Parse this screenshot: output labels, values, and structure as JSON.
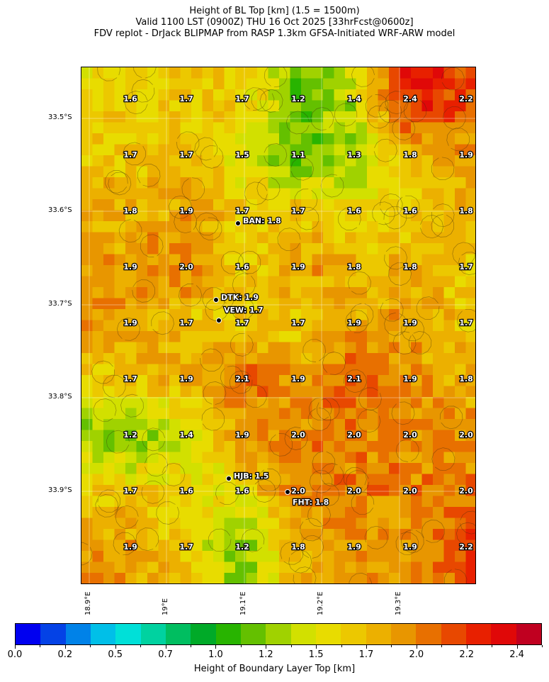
{
  "title": {
    "line1": "Height of BL Top [km] (1.5 = 1500m)",
    "line2": "Valid 1100 LST (0900Z) THU 16 Oct 2025 [33hrFcst@0600z]",
    "line3": "FDV replot - DrJack BLIPMAP from RASP 1.3km GFSA-Initiated WRF-ARW model"
  },
  "map": {
    "lat_ticks": [
      "33.5°S",
      "33.6°S",
      "33.7°S",
      "33.8°S",
      "33.9°S"
    ],
    "lon_ticks": [
      "18.9°E",
      "19°E",
      "19.1°E",
      "19.2°E",
      "19.3°E"
    ],
    "grid_labels": [
      [
        "1.6",
        "1.7",
        "1.7",
        "1.2",
        "1.4",
        "2.4",
        "2.2"
      ],
      [
        "1.7",
        "1.7",
        "1.5",
        "1.1",
        "1.3",
        "1.8",
        "1.9"
      ],
      [
        "1.8",
        "1.9",
        "1.7",
        "1.7",
        "1.6",
        "1.6",
        "1.8"
      ],
      [
        "1.9",
        "2.0",
        "1.6",
        "1.9",
        "1.8",
        "1.8",
        "1.7"
      ],
      [
        "1.9",
        "1.7",
        "1.7",
        "1.7",
        "1.9",
        "1.9",
        "1.7"
      ],
      [
        "1.7",
        "1.9",
        "2.1",
        "1.9",
        "2.1",
        "1.9",
        "1.8"
      ],
      [
        "1.2",
        "1.4",
        "1.9",
        "2.0",
        "2.0",
        "2.0",
        "2.0"
      ],
      [
        "1.7",
        "1.6",
        "1.6",
        "2.0",
        "2.0",
        "2.0",
        "2.0"
      ],
      [
        "1.9",
        "1.7",
        "1.2",
        "1.8",
        "1.9",
        "1.9",
        "2.2"
      ]
    ],
    "stations": [
      {
        "label": "BAN: 1.8"
      },
      {
        "label": "DTK: 1.9"
      },
      {
        "label": "VEW: 1.7"
      },
      {
        "label": "HJB: 1.5"
      },
      {
        "label": "FHT: 1.8"
      }
    ]
  },
  "colorbar": {
    "label": "Height of Boundary Layer Top [km]",
    "tick_labels": [
      "0.0",
      "0.2",
      "0.5",
      "0.7",
      "1.0",
      "1.2",
      "1.5",
      "1.7",
      "2.0",
      "2.2",
      "2.4"
    ],
    "range_km": [
      0,
      2.625
    ],
    "step_km": 0.125,
    "colors": [
      "#0000f0",
      "#0442e6",
      "#0082e8",
      "#00bfe8",
      "#00e0d8",
      "#00d2a0",
      "#00be60",
      "#00aa28",
      "#28b400",
      "#64c000",
      "#a0d200",
      "#d2e000",
      "#e8dc00",
      "#ecc800",
      "#ecb000",
      "#e89600",
      "#e87000",
      "#e84800",
      "#e82000",
      "#e00808",
      "#c00020"
    ]
  }
}
